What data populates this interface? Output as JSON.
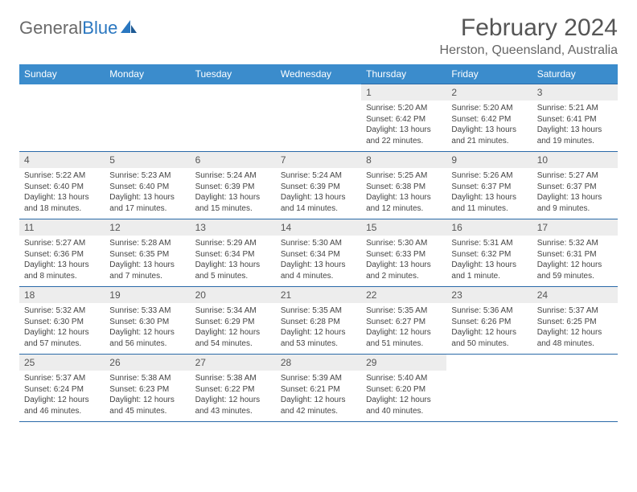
{
  "logo": {
    "word1": "General",
    "word2": "Blue"
  },
  "title": "February 2024",
  "location": "Herston, Queensland, Australia",
  "colors": {
    "header_bg": "#3b8ccc",
    "header_text": "#ffffff",
    "rule": "#2a6aa8",
    "daynum_bg": "#ededed",
    "logo_gray": "#6a6a6a",
    "logo_blue": "#2a77c0"
  },
  "day_headers": [
    "Sunday",
    "Monday",
    "Tuesday",
    "Wednesday",
    "Thursday",
    "Friday",
    "Saturday"
  ],
  "weeks": [
    [
      null,
      null,
      null,
      null,
      {
        "n": "1",
        "sunrise": "5:20 AM",
        "sunset": "6:42 PM",
        "dl1": "Daylight: 13 hours",
        "dl2": "and 22 minutes."
      },
      {
        "n": "2",
        "sunrise": "5:20 AM",
        "sunset": "6:42 PM",
        "dl1": "Daylight: 13 hours",
        "dl2": "and 21 minutes."
      },
      {
        "n": "3",
        "sunrise": "5:21 AM",
        "sunset": "6:41 PM",
        "dl1": "Daylight: 13 hours",
        "dl2": "and 19 minutes."
      }
    ],
    [
      {
        "n": "4",
        "sunrise": "5:22 AM",
        "sunset": "6:40 PM",
        "dl1": "Daylight: 13 hours",
        "dl2": "and 18 minutes."
      },
      {
        "n": "5",
        "sunrise": "5:23 AM",
        "sunset": "6:40 PM",
        "dl1": "Daylight: 13 hours",
        "dl2": "and 17 minutes."
      },
      {
        "n": "6",
        "sunrise": "5:24 AM",
        "sunset": "6:39 PM",
        "dl1": "Daylight: 13 hours",
        "dl2": "and 15 minutes."
      },
      {
        "n": "7",
        "sunrise": "5:24 AM",
        "sunset": "6:39 PM",
        "dl1": "Daylight: 13 hours",
        "dl2": "and 14 minutes."
      },
      {
        "n": "8",
        "sunrise": "5:25 AM",
        "sunset": "6:38 PM",
        "dl1": "Daylight: 13 hours",
        "dl2": "and 12 minutes."
      },
      {
        "n": "9",
        "sunrise": "5:26 AM",
        "sunset": "6:37 PM",
        "dl1": "Daylight: 13 hours",
        "dl2": "and 11 minutes."
      },
      {
        "n": "10",
        "sunrise": "5:27 AM",
        "sunset": "6:37 PM",
        "dl1": "Daylight: 13 hours",
        "dl2": "and 9 minutes."
      }
    ],
    [
      {
        "n": "11",
        "sunrise": "5:27 AM",
        "sunset": "6:36 PM",
        "dl1": "Daylight: 13 hours",
        "dl2": "and 8 minutes."
      },
      {
        "n": "12",
        "sunrise": "5:28 AM",
        "sunset": "6:35 PM",
        "dl1": "Daylight: 13 hours",
        "dl2": "and 7 minutes."
      },
      {
        "n": "13",
        "sunrise": "5:29 AM",
        "sunset": "6:34 PM",
        "dl1": "Daylight: 13 hours",
        "dl2": "and 5 minutes."
      },
      {
        "n": "14",
        "sunrise": "5:30 AM",
        "sunset": "6:34 PM",
        "dl1": "Daylight: 13 hours",
        "dl2": "and 4 minutes."
      },
      {
        "n": "15",
        "sunrise": "5:30 AM",
        "sunset": "6:33 PM",
        "dl1": "Daylight: 13 hours",
        "dl2": "and 2 minutes."
      },
      {
        "n": "16",
        "sunrise": "5:31 AM",
        "sunset": "6:32 PM",
        "dl1": "Daylight: 13 hours",
        "dl2": "and 1 minute."
      },
      {
        "n": "17",
        "sunrise": "5:32 AM",
        "sunset": "6:31 PM",
        "dl1": "Daylight: 12 hours",
        "dl2": "and 59 minutes."
      }
    ],
    [
      {
        "n": "18",
        "sunrise": "5:32 AM",
        "sunset": "6:30 PM",
        "dl1": "Daylight: 12 hours",
        "dl2": "and 57 minutes."
      },
      {
        "n": "19",
        "sunrise": "5:33 AM",
        "sunset": "6:30 PM",
        "dl1": "Daylight: 12 hours",
        "dl2": "and 56 minutes."
      },
      {
        "n": "20",
        "sunrise": "5:34 AM",
        "sunset": "6:29 PM",
        "dl1": "Daylight: 12 hours",
        "dl2": "and 54 minutes."
      },
      {
        "n": "21",
        "sunrise": "5:35 AM",
        "sunset": "6:28 PM",
        "dl1": "Daylight: 12 hours",
        "dl2": "and 53 minutes."
      },
      {
        "n": "22",
        "sunrise": "5:35 AM",
        "sunset": "6:27 PM",
        "dl1": "Daylight: 12 hours",
        "dl2": "and 51 minutes."
      },
      {
        "n": "23",
        "sunrise": "5:36 AM",
        "sunset": "6:26 PM",
        "dl1": "Daylight: 12 hours",
        "dl2": "and 50 minutes."
      },
      {
        "n": "24",
        "sunrise": "5:37 AM",
        "sunset": "6:25 PM",
        "dl1": "Daylight: 12 hours",
        "dl2": "and 48 minutes."
      }
    ],
    [
      {
        "n": "25",
        "sunrise": "5:37 AM",
        "sunset": "6:24 PM",
        "dl1": "Daylight: 12 hours",
        "dl2": "and 46 minutes."
      },
      {
        "n": "26",
        "sunrise": "5:38 AM",
        "sunset": "6:23 PM",
        "dl1": "Daylight: 12 hours",
        "dl2": "and 45 minutes."
      },
      {
        "n": "27",
        "sunrise": "5:38 AM",
        "sunset": "6:22 PM",
        "dl1": "Daylight: 12 hours",
        "dl2": "and 43 minutes."
      },
      {
        "n": "28",
        "sunrise": "5:39 AM",
        "sunset": "6:21 PM",
        "dl1": "Daylight: 12 hours",
        "dl2": "and 42 minutes."
      },
      {
        "n": "29",
        "sunrise": "5:40 AM",
        "sunset": "6:20 PM",
        "dl1": "Daylight: 12 hours",
        "dl2": "and 40 minutes."
      },
      null,
      null
    ]
  ]
}
